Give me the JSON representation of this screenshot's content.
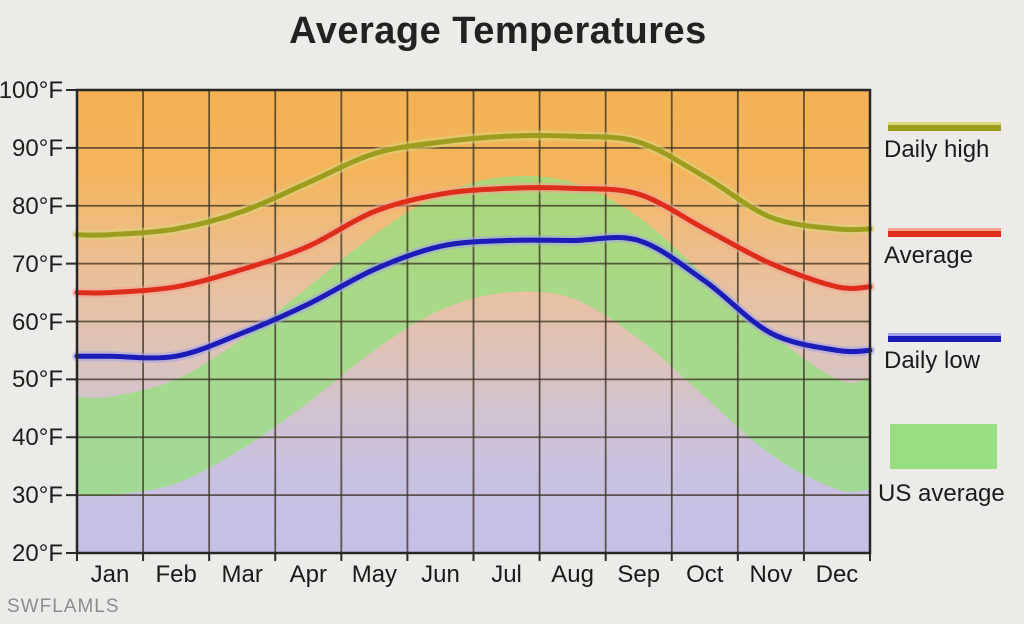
{
  "title": "Average Temperatures",
  "watermark": "SWFLAMLS",
  "legend": {
    "items": [
      {
        "label": "Daily high",
        "type": "line",
        "color": "#9C9D1E",
        "halo": "#D8D67B"
      },
      {
        "label": "Average",
        "type": "line",
        "color": "#DF2D1C",
        "halo": "#F2A493"
      },
      {
        "label": "Daily low",
        "type": "line",
        "color": "#1C1CB8",
        "halo": "#A2A2E8"
      },
      {
        "label": "US average",
        "type": "area",
        "color": "#98DF81"
      }
    ]
  },
  "chart_data": {
    "type": "line",
    "title": "Average Temperatures",
    "categories": [
      "Jan",
      "Feb",
      "Mar",
      "Apr",
      "May",
      "Jun",
      "Jul",
      "Aug",
      "Sep",
      "Oct",
      "Nov",
      "Dec"
    ],
    "y_ticks": [
      100,
      90,
      80,
      70,
      60,
      50,
      40,
      30,
      20
    ],
    "y_tick_suffix": "°F",
    "ylim": [
      20,
      100
    ],
    "grid": true,
    "legend_position": "right",
    "series": [
      {
        "name": "Daily high",
        "color": "#9C9D1E",
        "halo": "#D8D67B",
        "values": [
          75,
          76,
          79,
          84,
          89,
          91,
          92,
          92,
          91,
          85,
          78,
          76
        ]
      },
      {
        "name": "Average",
        "color": "#DF2D1C",
        "halo": "#F2A493",
        "values": [
          65,
          66,
          69,
          73,
          79,
          82,
          83,
          83,
          82,
          76,
          70,
          66
        ]
      },
      {
        "name": "Daily low",
        "color": "#1C1CB8",
        "halo": "#A2A2E8",
        "values": [
          54,
          54,
          58,
          63,
          69,
          73,
          74,
          74,
          74,
          67,
          58,
          55
        ]
      }
    ],
    "band": {
      "name": "US average",
      "color": "#98DF81",
      "opacity": 0.8,
      "high": [
        47,
        50,
        57,
        66,
        75,
        82,
        85,
        84,
        78,
        68,
        58,
        50
      ],
      "low": [
        30,
        32,
        38,
        46,
        55,
        62,
        65,
        64,
        57,
        47,
        37,
        31
      ]
    }
  },
  "colors": {
    "page_bg": "#EDEBE7",
    "plot_border": "#262626",
    "grid": "#3e3424",
    "bg_stops": [
      [
        "0%",
        "#F3B254"
      ],
      [
        "18%",
        "#F3B45B"
      ],
      [
        "30%",
        "#EFBC7F"
      ],
      [
        "43%",
        "#E8C1A0"
      ],
      [
        "55%",
        "#DFC3B6"
      ],
      [
        "68%",
        "#D3C3CE"
      ],
      [
        "80%",
        "#CAC2DF"
      ],
      [
        "100%",
        "#C3C0E7"
      ]
    ]
  }
}
